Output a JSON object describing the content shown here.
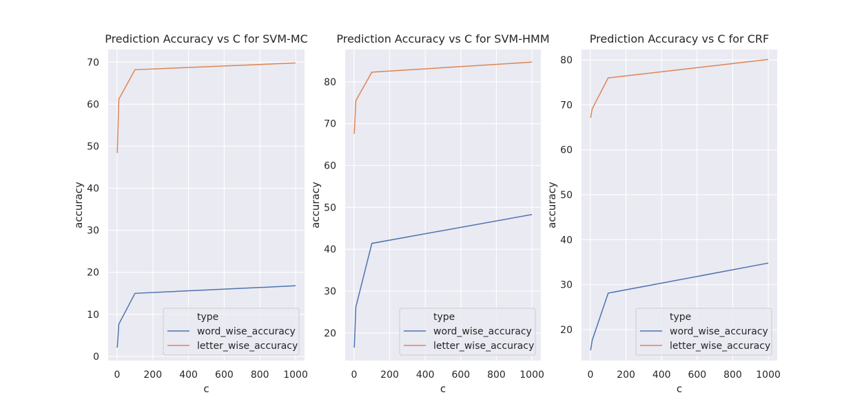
{
  "chart_data": [
    {
      "type": "line",
      "title": "Prediction Accuracy vs C for SVM-MC",
      "xlabel": "c",
      "ylabel": "accuracy",
      "xlim": [
        -50,
        1050
      ],
      "ylim": [
        -1,
        73
      ],
      "xticks": [
        0,
        200,
        400,
        600,
        800,
        1000
      ],
      "yticks": [
        0,
        10,
        20,
        30,
        40,
        50,
        60,
        70
      ],
      "legend_title": "type",
      "legend_position": "lower right",
      "grid": true,
      "x": [
        1,
        10,
        100,
        1000
      ],
      "series": [
        {
          "name": "word_wise_accuracy",
          "color": "#4c72b0",
          "values": [
            2.1,
            7.7,
            15.0,
            16.8
          ]
        },
        {
          "name": "letter_wise_accuracy",
          "color": "#dd8452",
          "values": [
            48.4,
            61.2,
            68.2,
            69.8
          ]
        }
      ]
    },
    {
      "type": "line",
      "title": "Prediction Accuracy vs C for SVM-HMM",
      "xlabel": "c",
      "ylabel": "accuracy",
      "xlim": [
        -50,
        1050
      ],
      "ylim": [
        13.4,
        87.7
      ],
      "xticks": [
        0,
        200,
        400,
        600,
        800,
        1000
      ],
      "yticks": [
        20,
        30,
        40,
        50,
        60,
        70,
        80
      ],
      "legend_title": "type",
      "legend_position": "lower right",
      "grid": true,
      "x": [
        1,
        10,
        100,
        1000
      ],
      "series": [
        {
          "name": "word_wise_accuracy",
          "color": "#4c72b0",
          "values": [
            16.5,
            26.2,
            41.4,
            48.3
          ]
        },
        {
          "name": "letter_wise_accuracy",
          "color": "#dd8452",
          "values": [
            67.6,
            75.5,
            82.3,
            84.7
          ]
        }
      ]
    },
    {
      "type": "line",
      "title": "Prediction Accuracy vs C for CRF",
      "xlabel": "c",
      "ylabel": "accuracy",
      "xlim": [
        -50,
        1050
      ],
      "ylim": [
        13.1,
        82.3
      ],
      "xticks": [
        0,
        200,
        400,
        600,
        800,
        1000
      ],
      "yticks": [
        20,
        30,
        40,
        50,
        60,
        70,
        80
      ],
      "legend_title": "type",
      "legend_position": "lower right",
      "grid": true,
      "x": [
        1,
        10,
        100,
        1000
      ],
      "series": [
        {
          "name": "word_wise_accuracy",
          "color": "#4c72b0",
          "values": [
            15.4,
            17.6,
            28.1,
            34.8
          ]
        },
        {
          "name": "letter_wise_accuracy",
          "color": "#dd8452",
          "values": [
            67.1,
            69.1,
            76.0,
            80.1
          ]
        }
      ]
    }
  ]
}
